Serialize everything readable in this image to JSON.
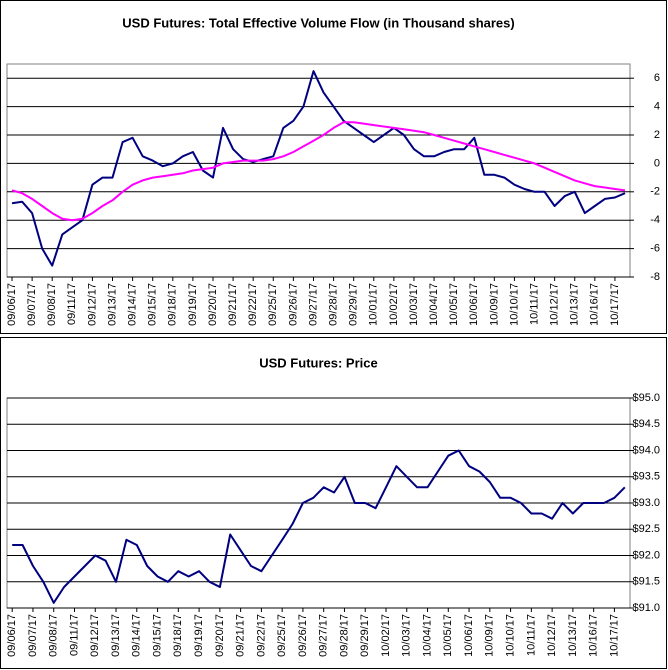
{
  "chart_data": [
    {
      "type": "line",
      "title": "USD Futures: Total Effective Volume Flow (in Thousand shares)",
      "categories": [
        "09/06/17",
        null,
        "09/07/17",
        null,
        "09/08/17",
        null,
        "09/11/17",
        null,
        "09/12/17",
        null,
        "09/13/17",
        null,
        "09/14/17",
        null,
        "09/15/17",
        null,
        "09/18/17",
        null,
        "09/19/17",
        null,
        "09/20/17",
        null,
        "09/21/17",
        null,
        "09/22/17",
        null,
        "09/25/17",
        null,
        "09/26/17",
        null,
        "09/27/17",
        null,
        "09/28/17",
        null,
        "09/29/17",
        null,
        "10/01/17",
        null,
        "10/02/17",
        null,
        "10/03/17",
        null,
        "10/04/17",
        null,
        "10/05/17",
        null,
        "10/06/17",
        null,
        "10/09/17",
        null,
        "10/10/17",
        null,
        "10/11/17",
        null,
        "10/12/17",
        null,
        "10/13/17",
        null,
        "10/16/17",
        null,
        "10/17/17",
        null
      ],
      "series": [
        {
          "color": "#000080",
          "values": [
            -2.8,
            -2.7,
            -3.5,
            -6.0,
            -7.2,
            -5.0,
            -4.5,
            -4.0,
            -1.5,
            -1.0,
            -1.0,
            1.5,
            1.8,
            0.5,
            0.2,
            -0.2,
            0.0,
            0.5,
            0.8,
            -0.5,
            -1.0,
            2.5,
            1.0,
            0.3,
            0.1,
            0.3,
            0.5,
            2.5,
            3.0,
            4.0,
            6.5,
            5.0,
            4.0,
            3.0,
            2.5,
            2.0,
            1.5,
            2.0,
            2.5,
            2.0,
            1.0,
            0.5,
            0.5,
            0.8,
            1.0,
            1.0,
            1.8,
            -0.8,
            -0.8,
            -1.0,
            -1.5,
            -1.8,
            -2.0,
            -2.0,
            -3.0,
            -2.3,
            -2.0,
            -3.5,
            -3.0,
            -2.5,
            -2.4,
            -2.1
          ]
        },
        {
          "color": "#ff00ff",
          "values": [
            -1.9,
            -2.1,
            -2.5,
            -3.0,
            -3.5,
            -3.9,
            -4.0,
            -3.9,
            -3.5,
            -3.0,
            -2.6,
            -2.0,
            -1.5,
            -1.2,
            -1.0,
            -0.9,
            -0.8,
            -0.7,
            -0.5,
            -0.4,
            -0.3,
            0.0,
            0.1,
            0.2,
            0.2,
            0.2,
            0.3,
            0.5,
            0.8,
            1.2,
            1.6,
            2.0,
            2.5,
            2.9,
            2.9,
            2.8,
            2.7,
            2.6,
            2.5,
            2.4,
            2.3,
            2.2,
            2.0,
            1.8,
            1.6,
            1.4,
            1.2,
            1.0,
            0.8,
            0.6,
            0.4,
            0.2,
            0.0,
            -0.3,
            -0.6,
            -0.9,
            -1.2,
            -1.4,
            -1.6,
            -1.7,
            -1.8,
            -1.9
          ]
        }
      ],
      "ylim": [
        -8,
        7
      ],
      "yticks": [
        -8,
        -6,
        -4,
        -2,
        0,
        2,
        4,
        6
      ],
      "grid": true
    },
    {
      "type": "line",
      "title": "USD Futures: Price",
      "categories": [
        "09/06/17",
        null,
        "09/07/17",
        null,
        "09/08/17",
        null,
        "09/11/17",
        null,
        "09/12/17",
        null,
        "09/13/17",
        null,
        "09/14/17",
        null,
        "09/15/17",
        null,
        "09/18/17",
        null,
        "09/19/17",
        null,
        "09/20/17",
        null,
        "09/21/17",
        null,
        "09/22/17",
        null,
        "09/25/17",
        null,
        "09/26/17",
        null,
        "09/27/17",
        null,
        "09/28/17",
        null,
        "09/29/17",
        null,
        "10/02/17",
        null,
        "10/03/17",
        null,
        "10/04/17",
        null,
        "10/05/17",
        null,
        "10/06/17",
        null,
        "10/09/17",
        null,
        "10/10/17",
        null,
        "10/11/17",
        null,
        "10/12/17",
        null,
        "10/13/17",
        null,
        "10/16/17",
        null,
        "10/17/17",
        null
      ],
      "series": [
        {
          "color": "#000080",
          "values": [
            92.2,
            92.2,
            91.8,
            91.5,
            91.1,
            91.4,
            91.6,
            91.8,
            92.0,
            91.9,
            91.5,
            92.3,
            92.2,
            91.8,
            91.6,
            91.5,
            91.7,
            91.6,
            91.7,
            91.5,
            91.4,
            92.4,
            92.1,
            91.8,
            91.7,
            92.0,
            92.3,
            92.6,
            93.0,
            93.1,
            93.3,
            93.2,
            93.5,
            93.0,
            93.0,
            92.9,
            93.3,
            93.7,
            93.5,
            93.3,
            93.3,
            93.6,
            93.9,
            94.0,
            93.7,
            93.6,
            93.4,
            93.1,
            93.1,
            93.0,
            92.8,
            92.8,
            92.7,
            93.0,
            92.8,
            93.0,
            93.0,
            93.0,
            93.1,
            93.3
          ]
        }
      ],
      "ylim": [
        91,
        95
      ],
      "yticks": [
        {
          "value": 91,
          "label": "$91.0"
        },
        {
          "value": 91.5,
          "label": "$91.5"
        },
        {
          "value": 92,
          "label": "$92.0"
        },
        {
          "value": 92.5,
          "label": "$92.5"
        },
        {
          "value": 93,
          "label": "$93.0"
        },
        {
          "value": 93.5,
          "label": "$93.5"
        },
        {
          "value": 94,
          "label": "$94.0"
        },
        {
          "value": 94.5,
          "label": "$94.5"
        },
        {
          "value": 95,
          "label": "$95.0"
        }
      ],
      "grid": true
    }
  ]
}
